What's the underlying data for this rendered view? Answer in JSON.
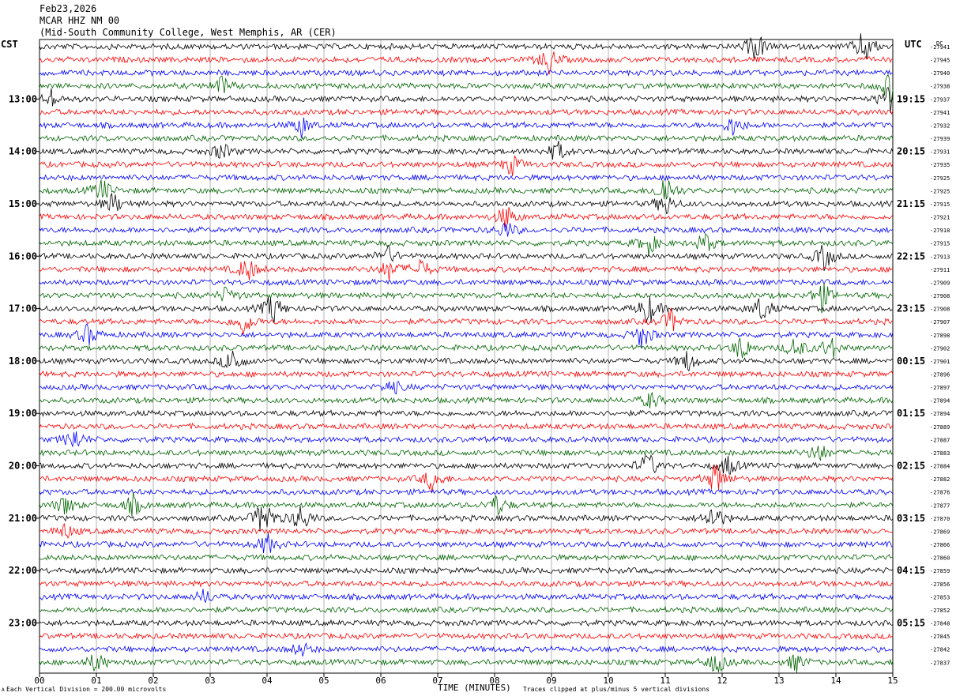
{
  "header": {
    "date": "Feb23,2026",
    "station": "MCAR HHZ NM 00",
    "location": "(Mid-South Community College, West Memphis, AR (CER)"
  },
  "left_axis_label": "CST",
  "right_axis_label": "UTC",
  "dc_label": "DC",
  "footer": {
    "scale_note": "Each Vertical Division =  200.00 microvolts",
    "xlabel": "TIME (MINUTES)",
    "clip_note": "Traces clipped at plus/minus 5 vertical divisions",
    "corner_mark": "A"
  },
  "colors": {
    "cycle": [
      "#000000",
      "#ff0000",
      "#0000ff",
      "#006400"
    ],
    "grid": "#808080"
  },
  "chart_data": {
    "type": "line",
    "title": "",
    "xlabel": "TIME (MINUTES)",
    "xlim": [
      0,
      15
    ],
    "x_ticks": [
      "00",
      "01",
      "02",
      "03",
      "04",
      "05",
      "06",
      "07",
      "08",
      "09",
      "10",
      "11",
      "12",
      "13",
      "14",
      "15"
    ],
    "traces_per_hour": 4,
    "trace_count": 48,
    "left_time_labels": [
      "13:00",
      "14:00",
      "15:00",
      "16:00",
      "17:00",
      "18:00",
      "19:00",
      "20:00",
      "21:00",
      "22:00",
      "23:00"
    ],
    "right_time_labels": [
      "19:15",
      "20:15",
      "21:15",
      "22:15",
      "23:15",
      "00:15",
      "01:15",
      "02:15",
      "03:15",
      "04:15",
      "05:15"
    ],
    "label_first_trace_index": 4,
    "trace_dc_offsets": [
      "-27941",
      "-27945",
      "-27940",
      "-27938",
      "-27937",
      "-27941",
      "-27932",
      "-27939",
      "-27931",
      "-27935",
      "-27925",
      "-27925",
      "-27915",
      "-27921",
      "-27918",
      "-27915",
      "-27913",
      "-27911",
      "-27909",
      "-27908",
      "-27908",
      "-27907",
      "-27898",
      "-27902",
      "-27901",
      "-27896",
      "-27897",
      "-27894",
      "-27894",
      "-27889",
      "-27887",
      "-27883",
      "-27884",
      "-27882",
      "-27876",
      "-27877",
      "-27870",
      "-27869",
      "-27866",
      "-27860",
      "-27859",
      "-27856",
      "-27853",
      "-27852",
      "-27848",
      "-27845",
      "-27842",
      "-27837"
    ],
    "events": [
      {
        "trace": 0,
        "minute": 12.6,
        "amp": 22
      },
      {
        "trace": 0,
        "minute": 14.5,
        "amp": 24
      },
      {
        "trace": 1,
        "minute": 8.95,
        "amp": 18
      },
      {
        "trace": 3,
        "minute": 14.95,
        "amp": 20
      },
      {
        "trace": 3,
        "minute": 3.2,
        "amp": 12
      },
      {
        "trace": 4,
        "minute": 0.2,
        "amp": 12
      },
      {
        "trace": 4,
        "minute": 14.95,
        "amp": 20
      },
      {
        "trace": 6,
        "minute": 4.6,
        "amp": 14
      },
      {
        "trace": 6,
        "minute": 12.2,
        "amp": 14
      },
      {
        "trace": 8,
        "minute": 3.2,
        "amp": 12
      },
      {
        "trace": 8,
        "minute": 9.1,
        "amp": 14
      },
      {
        "trace": 9,
        "minute": 8.3,
        "amp": 14
      },
      {
        "trace": 11,
        "minute": 1.1,
        "amp": 16
      },
      {
        "trace": 11,
        "minute": 11.0,
        "amp": 24
      },
      {
        "trace": 12,
        "minute": 1.3,
        "amp": 14
      },
      {
        "trace": 12,
        "minute": 11.0,
        "amp": 16
      },
      {
        "trace": 13,
        "minute": 8.2,
        "amp": 16
      },
      {
        "trace": 14,
        "minute": 8.2,
        "amp": 12
      },
      {
        "trace": 15,
        "minute": 10.7,
        "amp": 16
      },
      {
        "trace": 15,
        "minute": 11.7,
        "amp": 14
      },
      {
        "trace": 16,
        "minute": 6.1,
        "amp": 14
      },
      {
        "trace": 16,
        "minute": 13.8,
        "amp": 18
      },
      {
        "trace": 17,
        "minute": 3.65,
        "amp": 18
      },
      {
        "trace": 17,
        "minute": 6.15,
        "amp": 14
      },
      {
        "trace": 17,
        "minute": 6.7,
        "amp": 14
      },
      {
        "trace": 19,
        "minute": 3.3,
        "amp": 12
      },
      {
        "trace": 19,
        "minute": 13.75,
        "amp": 20
      },
      {
        "trace": 20,
        "minute": 4.1,
        "amp": 22
      },
      {
        "trace": 20,
        "minute": 10.7,
        "amp": 22
      },
      {
        "trace": 20,
        "minute": 12.7,
        "amp": 18
      },
      {
        "trace": 21,
        "minute": 3.6,
        "amp": 18
      },
      {
        "trace": 21,
        "minute": 11.1,
        "amp": 16
      },
      {
        "trace": 22,
        "minute": 0.85,
        "amp": 14
      },
      {
        "trace": 22,
        "minute": 10.6,
        "amp": 18
      },
      {
        "trace": 23,
        "minute": 12.35,
        "amp": 18
      },
      {
        "trace": 23,
        "minute": 13.3,
        "amp": 16
      },
      {
        "trace": 23,
        "minute": 13.9,
        "amp": 16
      },
      {
        "trace": 24,
        "minute": 3.4,
        "amp": 20
      },
      {
        "trace": 24,
        "minute": 11.4,
        "amp": 14
      },
      {
        "trace": 26,
        "minute": 6.2,
        "amp": 10
      },
      {
        "trace": 27,
        "minute": 10.75,
        "amp": 12
      },
      {
        "trace": 30,
        "minute": 0.6,
        "amp": 16
      },
      {
        "trace": 31,
        "minute": 13.7,
        "amp": 14
      },
      {
        "trace": 32,
        "minute": 10.7,
        "amp": 18
      },
      {
        "trace": 32,
        "minute": 12.1,
        "amp": 14
      },
      {
        "trace": 33,
        "minute": 6.9,
        "amp": 16
      },
      {
        "trace": 33,
        "minute": 11.9,
        "amp": 22
      },
      {
        "trace": 35,
        "minute": 0.45,
        "amp": 14
      },
      {
        "trace": 35,
        "minute": 1.65,
        "amp": 14
      },
      {
        "trace": 35,
        "minute": 8.05,
        "amp": 14
      },
      {
        "trace": 36,
        "minute": 3.95,
        "amp": 30
      },
      {
        "trace": 36,
        "minute": 4.6,
        "amp": 20
      },
      {
        "trace": 36,
        "minute": 11.85,
        "amp": 20
      },
      {
        "trace": 37,
        "minute": 0.45,
        "amp": 10
      },
      {
        "trace": 38,
        "minute": 4.0,
        "amp": 14
      },
      {
        "trace": 42,
        "minute": 2.9,
        "amp": 10
      },
      {
        "trace": 46,
        "minute": 4.6,
        "amp": 10
      },
      {
        "trace": 47,
        "minute": 1.0,
        "amp": 14
      },
      {
        "trace": 47,
        "minute": 11.9,
        "amp": 16
      },
      {
        "trace": 47,
        "minute": 13.3,
        "amp": 12
      }
    ]
  }
}
